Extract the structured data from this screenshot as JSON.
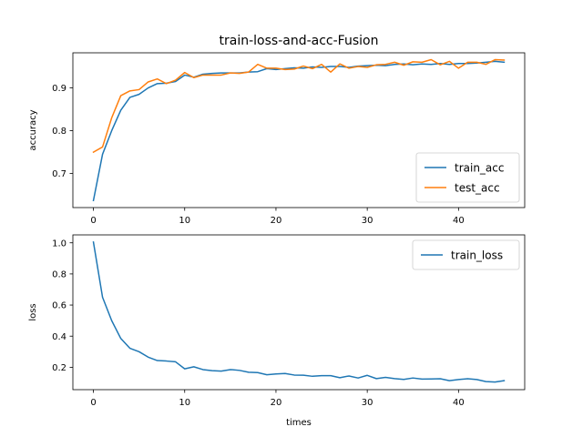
{
  "title": "train-loss-and-acc-Fusion",
  "chart_data": [
    {
      "type": "line",
      "title": "train-loss-and-acc-Fusion",
      "xlabel": "",
      "ylabel": "accuracy",
      "xlim": [
        -2.25,
        47.25
      ],
      "ylim": [
        0.6205,
        0.982
      ],
      "xticks": [
        0,
        10,
        20,
        30,
        40
      ],
      "yticks": [
        0.7,
        0.8,
        0.9
      ],
      "ytick_labels": [
        "0.7",
        "0.8",
        "0.9"
      ],
      "legend_position": "lower-right",
      "grid": false,
      "x": [
        0,
        1,
        2,
        3,
        4,
        5,
        6,
        7,
        8,
        9,
        10,
        11,
        12,
        13,
        14,
        15,
        16,
        17,
        18,
        19,
        20,
        21,
        22,
        23,
        24,
        25,
        26,
        27,
        28,
        29,
        30,
        31,
        32,
        33,
        34,
        35,
        36,
        37,
        38,
        39,
        40,
        41,
        42,
        43,
        44,
        45
      ],
      "series": [
        {
          "name": "train_acc",
          "color": "#1f77b4",
          "values": [
            0.637,
            0.745,
            0.8,
            0.848,
            0.878,
            0.885,
            0.9,
            0.91,
            0.911,
            0.915,
            0.93,
            0.925,
            0.932,
            0.934,
            0.935,
            0.935,
            0.935,
            0.937,
            0.938,
            0.945,
            0.943,
            0.945,
            0.947,
            0.946,
            0.949,
            0.948,
            0.95,
            0.95,
            0.948,
            0.951,
            0.952,
            0.953,
            0.952,
            0.955,
            0.956,
            0.954,
            0.956,
            0.955,
            0.957,
            0.955,
            0.957,
            0.957,
            0.958,
            0.96,
            0.962,
            0.96
          ]
        },
        {
          "name": "test_acc",
          "color": "#ff7f0e",
          "values": [
            0.75,
            0.762,
            0.83,
            0.882,
            0.893,
            0.896,
            0.914,
            0.921,
            0.91,
            0.918,
            0.936,
            0.924,
            0.93,
            0.93,
            0.93,
            0.935,
            0.934,
            0.937,
            0.955,
            0.946,
            0.946,
            0.943,
            0.944,
            0.951,
            0.945,
            0.955,
            0.937,
            0.956,
            0.946,
            0.95,
            0.948,
            0.954,
            0.955,
            0.96,
            0.953,
            0.961,
            0.96,
            0.966,
            0.954,
            0.962,
            0.946,
            0.96,
            0.96,
            0.955,
            0.966,
            0.965
          ]
        }
      ]
    },
    {
      "type": "line",
      "title": "",
      "xlabel": "times",
      "ylabel": "loss",
      "xlim": [
        -2.25,
        47.25
      ],
      "ylim": [
        0.056,
        1.051
      ],
      "xticks": [
        0,
        10,
        20,
        30,
        40
      ],
      "yticks": [
        0.2,
        0.4,
        0.6,
        0.8,
        1.0
      ],
      "ytick_labels": [
        "0.2",
        "0.4",
        "0.6",
        "0.8",
        "1.0"
      ],
      "legend_position": "upper-right",
      "grid": false,
      "x": [
        0,
        1,
        2,
        3,
        4,
        5,
        6,
        7,
        8,
        9,
        10,
        11,
        12,
        13,
        14,
        15,
        16,
        17,
        18,
        19,
        20,
        21,
        22,
        23,
        24,
        25,
        26,
        27,
        28,
        29,
        30,
        31,
        32,
        33,
        34,
        35,
        36,
        37,
        38,
        39,
        40,
        41,
        42,
        43,
        44,
        45
      ],
      "series": [
        {
          "name": "train_loss",
          "color": "#1f77b4",
          "values": [
            1.005,
            0.65,
            0.5,
            0.385,
            0.322,
            0.3,
            0.265,
            0.243,
            0.24,
            0.235,
            0.19,
            0.203,
            0.185,
            0.178,
            0.175,
            0.185,
            0.18,
            0.168,
            0.166,
            0.152,
            0.157,
            0.16,
            0.15,
            0.149,
            0.142,
            0.146,
            0.146,
            0.133,
            0.144,
            0.131,
            0.148,
            0.127,
            0.135,
            0.127,
            0.122,
            0.131,
            0.124,
            0.125,
            0.126,
            0.114,
            0.121,
            0.126,
            0.121,
            0.108,
            0.105,
            0.114
          ]
        }
      ]
    }
  ]
}
